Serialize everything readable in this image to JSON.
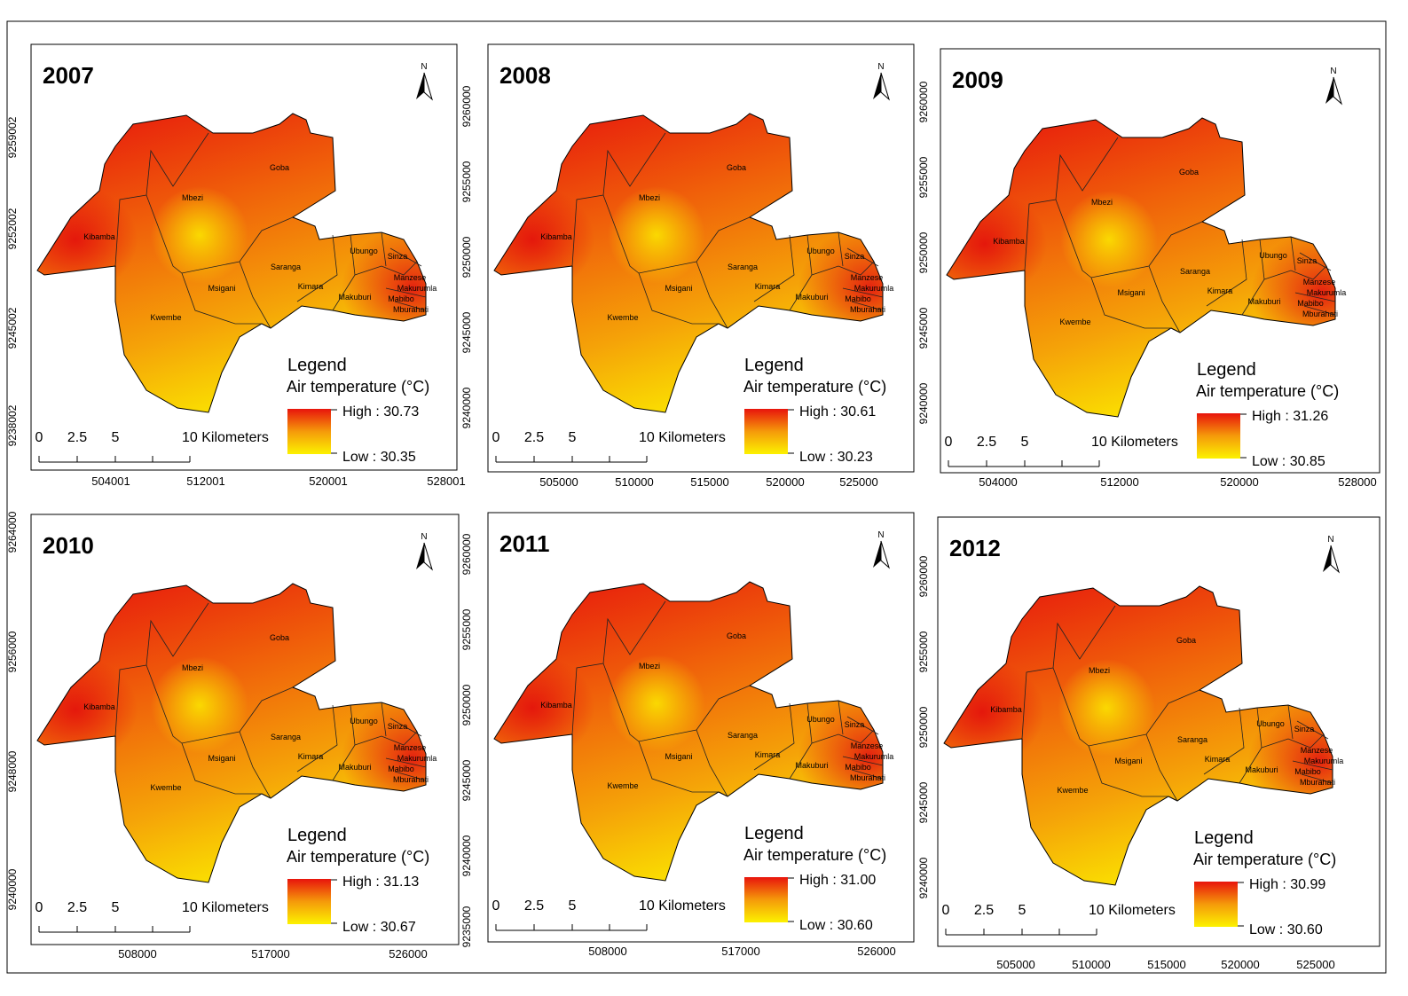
{
  "panels": [
    {
      "year": "2007",
      "north": "N",
      "legend": {
        "title": "Legend",
        "subtitle": "Air temperature (°C)",
        "high": "High : 30.73",
        "low": "Low : 30.35"
      },
      "scale": [
        "0",
        "2.5",
        "5",
        "10 Kilometers"
      ],
      "x_ticks": [
        "504001",
        "512001",
        "520001",
        "528001"
      ],
      "y_ticks": [
        "9259002",
        "9252002",
        "9245002",
        "9238002"
      ],
      "places": [
        "Goba",
        "Mbezi",
        "Kibamba",
        "Saranga",
        "Msigani",
        "Kwembe",
        "Kimara",
        "Ubungo",
        "Sinza",
        "Manzese",
        "Makurumla",
        "Makuburi",
        "Mabibo",
        "Mburahati"
      ]
    },
    {
      "year": "2008",
      "north": "N",
      "legend": {
        "title": "Legend",
        "subtitle": "Air temperature (°C)",
        "high": "High : 30.61",
        "low": "Low : 30.23"
      },
      "scale": [
        "0",
        "2.5",
        "5",
        "10 Kilometers"
      ],
      "x_ticks": [
        "505000",
        "510000",
        "515000",
        "520000",
        "525000"
      ],
      "y_ticks": [
        "9260000",
        "9255000",
        "9250000",
        "9245000",
        "9240000"
      ],
      "places": [
        "Goba",
        "Mbezi",
        "Kibamba",
        "Saranga",
        "Msigani",
        "Kwembe",
        "Kimara",
        "Ubungo",
        "Sinza",
        "Manzese",
        "Makurumla",
        "Makuburi",
        "Mabibo",
        "Mburahati"
      ]
    },
    {
      "year": "2009",
      "north": "N",
      "legend": {
        "title": "Legend",
        "subtitle": "Air temperature (°C)",
        "high": "High : 31.26",
        "low": "Low : 30.85"
      },
      "scale": [
        "0",
        "2.5",
        "5",
        "10 Kilometers"
      ],
      "x_ticks": [
        "504000",
        "512000",
        "520000",
        "528000"
      ],
      "y_ticks": [
        "9260000",
        "9255000",
        "9250000",
        "9245000",
        "9240000"
      ],
      "places": [
        "Goba",
        "Mbezi",
        "Kibamba",
        "Saranga",
        "Msigani",
        "Kwembe",
        "Kimara",
        "Ubungo",
        "Sinza",
        "Manzese",
        "Makurumla",
        "Makuburi",
        "Mabibo",
        "Mburahati"
      ]
    },
    {
      "year": "2010",
      "north": "N",
      "legend": {
        "title": "Legend",
        "subtitle": "Air temperature (°C)",
        "high": "High : 31.13",
        "low": "Low : 30.67"
      },
      "scale": [
        "0",
        "2.5",
        "5",
        "10 Kilometers"
      ],
      "x_ticks": [
        "508000",
        "517000",
        "526000"
      ],
      "y_ticks": [
        "9264000",
        "9256000",
        "9248000",
        "9240000"
      ],
      "places": [
        "Goba",
        "Mbezi",
        "Kibamba",
        "Saranga",
        "Msigani",
        "Kwembe",
        "Kimara",
        "Ubungo",
        "Sinza",
        "Manzese",
        "Makurumla",
        "Makuburi",
        "Mabibo",
        "Mburahati"
      ]
    },
    {
      "year": "2011",
      "north": "N",
      "legend": {
        "title": "Legend",
        "subtitle": "Air temperature (°C)",
        "high": "High : 31.00",
        "low": "Low : 30.60"
      },
      "scale": [
        "0",
        "2.5",
        "5",
        "10 Kilometers"
      ],
      "x_ticks": [
        "508000",
        "517000",
        "526000"
      ],
      "y_ticks": [
        "9260000",
        "9255000",
        "9250000",
        "9245000",
        "9240000",
        "9235000"
      ],
      "places": [
        "Goba",
        "Mbezi",
        "Kibamba",
        "Saranga",
        "Msigani",
        "Kwembe",
        "Kimara",
        "Ubungo",
        "Sinza",
        "Manzese",
        "Makurumla",
        "Makuburi",
        "Mabibo",
        "Mburahati"
      ]
    },
    {
      "year": "2012",
      "north": "N",
      "legend": {
        "title": "Legend",
        "subtitle": "Air temperature (°C)",
        "high": "High : 30.99",
        "low": "Low : 30.60"
      },
      "scale": [
        "0",
        "2.5",
        "5",
        "10 Kilometers"
      ],
      "x_ticks": [
        "505000",
        "510000",
        "515000",
        "520000",
        "525000"
      ],
      "y_ticks": [
        "9260000",
        "9255000",
        "9250000",
        "9245000",
        "9240000"
      ],
      "places": [
        "Goba",
        "Mbezi",
        "Kibamba",
        "Saranga",
        "Msigani",
        "Kwembe",
        "Kimara",
        "Ubungo",
        "Sinza",
        "Manzese",
        "Makurumla",
        "Makuburi",
        "Mabibo",
        "Mburahati"
      ]
    }
  ]
}
